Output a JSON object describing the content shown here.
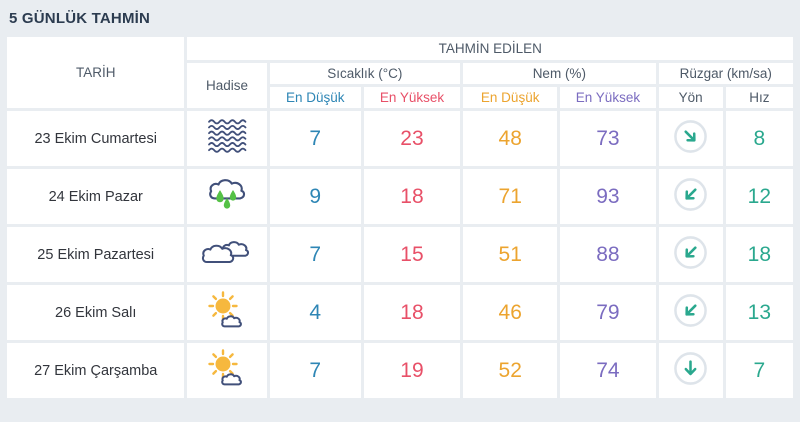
{
  "title": "5 GÜNLÜK TAHMİN",
  "table": {
    "header_tarih": "TARİH",
    "header_tahmin_edilen": "TAHMİN EDİLEN",
    "header_hadise": "Hadise",
    "groups": [
      {
        "label": "Sıcaklık (°C)",
        "sub": [
          "En Düşük",
          "En Yüksek"
        ]
      },
      {
        "label": "Nem (%)",
        "sub": [
          "En Düşük",
          "En Yüksek"
        ]
      },
      {
        "label": "Rüzgar (km/sa)",
        "sub": [
          "Yön",
          "Hız"
        ]
      }
    ],
    "rows": [
      {
        "date": "23 Ekim Cumartesi",
        "condition": "fog",
        "condition_icon": "fog-icon",
        "temp_min": "7",
        "temp_max": "23",
        "hum_min": "48",
        "hum_max": "73",
        "wind_dir": "down-right",
        "wind_rot": -45,
        "wind_speed": "8"
      },
      {
        "date": "24 Ekim Pazar",
        "condition": "rain",
        "condition_icon": "rain-icon",
        "temp_min": "9",
        "temp_max": "18",
        "hum_min": "71",
        "hum_max": "93",
        "wind_dir": "down-left",
        "wind_rot": 45,
        "wind_speed": "12"
      },
      {
        "date": "25 Ekim Pazartesi",
        "condition": "clouds",
        "condition_icon": "clouds-icon",
        "temp_min": "7",
        "temp_max": "15",
        "hum_min": "51",
        "hum_max": "88",
        "wind_dir": "down-left",
        "wind_rot": 45,
        "wind_speed": "18"
      },
      {
        "date": "26 Ekim Salı",
        "condition": "sun-cloud",
        "condition_icon": "sun-cloud-icon",
        "temp_min": "4",
        "temp_max": "18",
        "hum_min": "46",
        "hum_max": "79",
        "wind_dir": "down-left",
        "wind_rot": 45,
        "wind_speed": "13"
      },
      {
        "date": "27 Ekim Çarşamba",
        "condition": "sun-cloud",
        "condition_icon": "sun-cloud-icon",
        "temp_min": "7",
        "temp_max": "19",
        "hum_min": "52",
        "hum_max": "74",
        "wind_dir": "down",
        "wind_rot": 0,
        "wind_speed": "7"
      }
    ]
  },
  "colors": {
    "page_background": "#e9edf1",
    "cell_background": "#ffffff",
    "title_text": "#2c3c50",
    "header_text": "#4e5a68",
    "date_text": "#32353c",
    "temp_min": "#2e86b5",
    "temp_max": "#e85068",
    "humidity_min": "#eca42f",
    "humidity_max": "#7b6cc0",
    "wind": "#2aa88e",
    "wind_circle_ring": "#dee4ea",
    "icon_navy": "#41507a",
    "rain_drop_green": "#55c146",
    "sun_orange": "#f6b83e"
  }
}
